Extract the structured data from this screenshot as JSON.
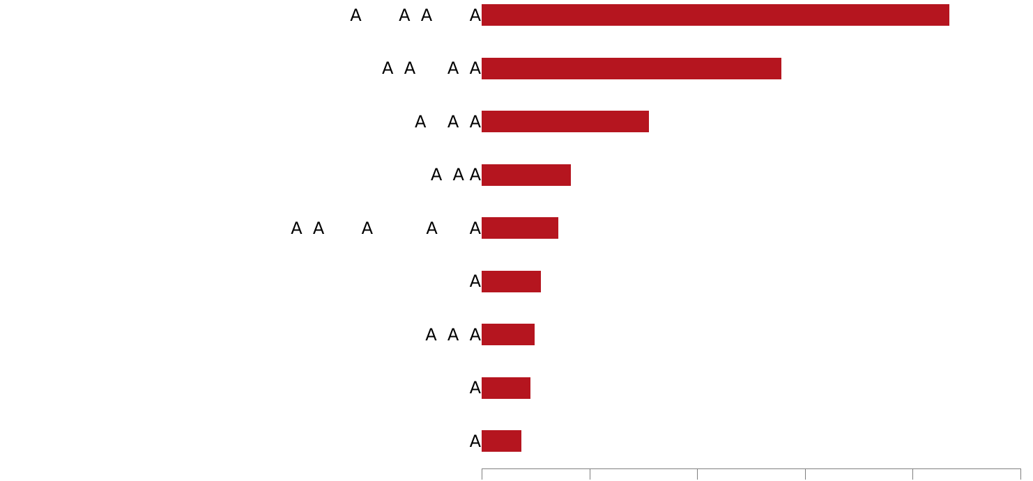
{
  "chart_data": {
    "type": "bar",
    "orientation": "horizontal",
    "categories": [
      "A       A  A       A",
      "A  A      A  A",
      "A    A  A",
      "A  A A",
      "A  A       A          A      A",
      "A",
      "A  A  A",
      "A",
      "A"
    ],
    "values": [
      868,
      556,
      310,
      166,
      142,
      110,
      98,
      90,
      74
    ],
    "xlim": [
      0,
      1000
    ],
    "x_ticks": [
      0,
      200,
      400,
      600,
      800,
      1000
    ],
    "tick_labels_visible": false,
    "grid": false,
    "legend": "none",
    "colors": {
      "bar": "#b5151f",
      "axis": "#7f7f7f",
      "text": "#000000"
    }
  }
}
